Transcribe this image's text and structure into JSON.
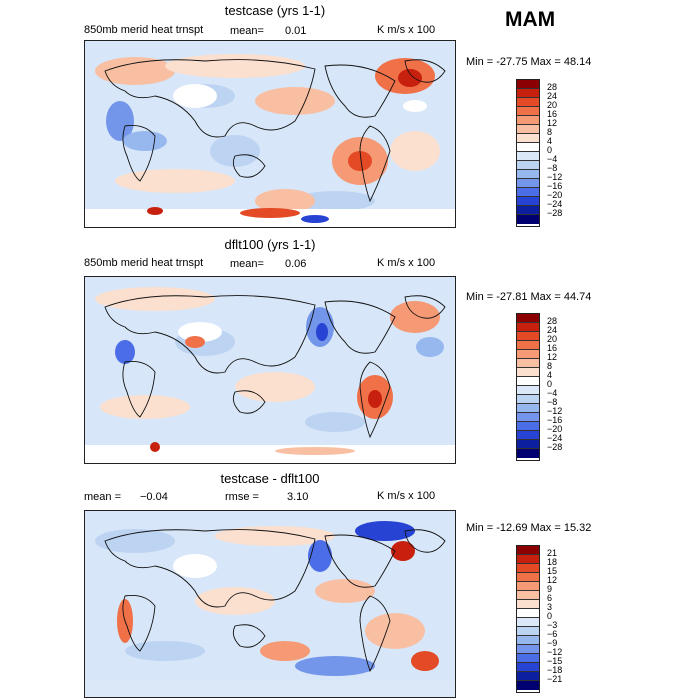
{
  "season": "MAM",
  "colors": {
    "land": "#f2f2f2",
    "ocean_base": "#d7e6f8",
    "coast": "#111111"
  },
  "panels": [
    {
      "title": "testcase (yrs 1-1)",
      "left_label": "850mb merid heat trnspt",
      "stat_label": "mean=",
      "stat_value": "0.01",
      "units": "K m/s x 100",
      "minmax": "Min = -27.75 Max =  48.14",
      "levels": [
        "28",
        "24",
        "20",
        "16",
        "12",
        "8",
        "4",
        "0",
        "−4",
        "−8",
        "−12",
        "−16",
        "−20",
        "−24",
        "−28"
      ],
      "colors": [
        "#8b0000",
        "#c8200e",
        "#e34a25",
        "#f07048",
        "#f59a75",
        "#f8bfa3",
        "#fbe0d0",
        "#ffffff",
        "#dbe8f8",
        "#bcd3f2",
        "#97b8ee",
        "#7396ea",
        "#4b6ee8",
        "#2643d3",
        "#0c1f9e",
        "#000070"
      ]
    },
    {
      "title": "dflt100 (yrs 1-1)",
      "left_label": "850mb merid heat trnspt",
      "stat_label": "mean=",
      "stat_value": "0.06",
      "units": "K m/s x 100",
      "minmax": "Min = -27.81 Max =  44.74",
      "levels": [
        "28",
        "24",
        "20",
        "16",
        "12",
        "8",
        "4",
        "0",
        "−4",
        "−8",
        "−12",
        "−16",
        "−20",
        "−24",
        "−28"
      ],
      "colors": [
        "#8b0000",
        "#c8200e",
        "#e34a25",
        "#f07048",
        "#f59a75",
        "#f8bfa3",
        "#fbe0d0",
        "#ffffff",
        "#dbe8f8",
        "#bcd3f2",
        "#97b8ee",
        "#7396ea",
        "#4b6ee8",
        "#2643d3",
        "#0c1f9e",
        "#000070"
      ]
    },
    {
      "title": "testcase - dflt100",
      "mean_label": "mean =",
      "mean_value": "−0.04",
      "rmse_label": "rmse =",
      "rmse_value": "3.10",
      "units": "K m/s x 100",
      "minmax": "Min = -12.69 Max =  15.32",
      "levels": [
        "21",
        "18",
        "15",
        "12",
        "9",
        "6",
        "3",
        "0",
        "−3",
        "−6",
        "−9",
        "−12",
        "−15",
        "−18",
        "−21"
      ],
      "colors": [
        "#8b0000",
        "#c8200e",
        "#e34a25",
        "#f07048",
        "#f59a75",
        "#f8bfa3",
        "#fbe0d0",
        "#ffffff",
        "#dbe8f8",
        "#bcd3f2",
        "#97b8ee",
        "#7396ea",
        "#4b6ee8",
        "#2643d3",
        "#0c1f9e",
        "#000070"
      ]
    }
  ]
}
